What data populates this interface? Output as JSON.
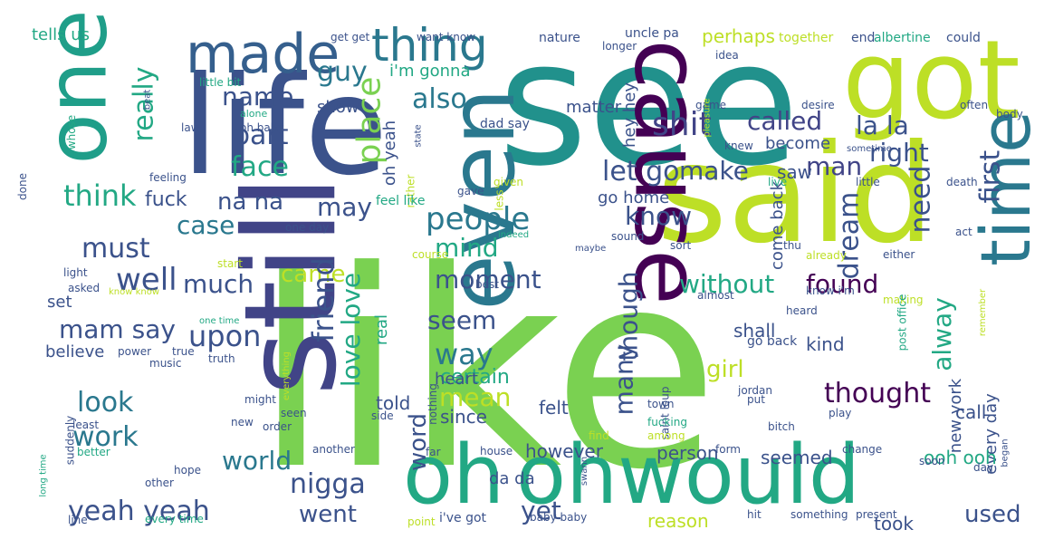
{
  "words": [
    {
      "id": "like",
      "text": "like",
      "color": "#7ad151"
    },
    {
      "id": "one",
      "text": "one",
      "color": "#1f9e89"
    },
    {
      "id": "see",
      "text": "see",
      "color": "#21918c"
    },
    {
      "id": "said",
      "text": "said",
      "color": "#bddf26"
    },
    {
      "id": "life",
      "text": "life",
      "color": "#3b528b"
    },
    {
      "id": "got",
      "text": "got",
      "color": "#bddf26"
    },
    {
      "id": "still",
      "text": "still",
      "color": "#414487"
    },
    {
      "id": "cause",
      "text": "cause",
      "color": "#440154"
    },
    {
      "id": "time",
      "text": "time",
      "color": "#2a788e"
    },
    {
      "id": "even",
      "text": "even",
      "color": "#2a788e"
    },
    {
      "id": "oh",
      "text": "oh",
      "color": "#22a884"
    },
    {
      "id": "ohwould",
      "text": "ohwould",
      "color": "#22a884"
    },
    {
      "id": "would",
      "text": "would",
      "color": "#2a788e"
    },
    {
      "id": "made",
      "text": "made",
      "color": "#355f8d"
    },
    {
      "id": "thing",
      "text": "thing",
      "color": "#2a788e"
    },
    {
      "id": "guy",
      "text": "guy",
      "color": "#2a788e"
    },
    {
      "id": "also",
      "text": "also",
      "color": "#2a788e"
    },
    {
      "id": "name",
      "text": "name",
      "color": "#3b528b"
    },
    {
      "id": "part",
      "text": "part",
      "color": "#3b528b"
    },
    {
      "id": "face",
      "text": "face",
      "color": "#22a884"
    },
    {
      "id": "place",
      "text": "place",
      "color": "#7ad151"
    },
    {
      "id": "shit",
      "text": "shit",
      "color": "#414487"
    },
    {
      "id": "called",
      "text": "called",
      "color": "#414487"
    },
    {
      "id": "la_la",
      "text": "la la",
      "color": "#3b528b"
    },
    {
      "id": "right",
      "text": "right",
      "color": "#3b528b"
    },
    {
      "id": "man",
      "text": "man",
      "color": "#414487"
    },
    {
      "id": "really",
      "text": "really",
      "color": "#22a884"
    },
    {
      "id": "think",
      "text": "think",
      "color": "#22a884"
    },
    {
      "id": "fuck",
      "text": "fuck",
      "color": "#3b528b"
    },
    {
      "id": "na_na",
      "text": "na na",
      "color": "#3b528b"
    },
    {
      "id": "may",
      "text": "may",
      "color": "#3b528b"
    },
    {
      "id": "people",
      "text": "people",
      "color": "#2a788e"
    },
    {
      "id": "let_go",
      "text": "let go",
      "color": "#3b528b"
    },
    {
      "id": "make",
      "text": "make",
      "color": "#3b528b"
    },
    {
      "id": "know",
      "text": "know",
      "color": "#3b528b"
    },
    {
      "id": "case",
      "text": "case",
      "color": "#2a788e"
    },
    {
      "id": "must",
      "text": "must",
      "color": "#3b528b"
    },
    {
      "id": "well",
      "text": "well",
      "color": "#3b528b"
    },
    {
      "id": "much",
      "text": "much",
      "color": "#3b528b"
    },
    {
      "id": "mind",
      "text": "mind",
      "color": "#22a884"
    },
    {
      "id": "moment",
      "text": "moment",
      "color": "#3b528b"
    },
    {
      "id": "came",
      "text": "came",
      "color": "#bddf26"
    },
    {
      "id": "without",
      "text": "without",
      "color": "#22a884"
    },
    {
      "id": "found",
      "text": "found",
      "color": "#440154"
    },
    {
      "id": "first",
      "text": "first",
      "color": "#3b528b"
    },
    {
      "id": "need",
      "text": "need",
      "color": "#3b528b"
    },
    {
      "id": "dream",
      "text": "dream",
      "color": "#3b528b"
    },
    {
      "id": "friend",
      "text": "friend",
      "color": "#3b528b"
    },
    {
      "id": "love_love",
      "text": "love love",
      "color": "#22a884"
    },
    {
      "id": "mam_say",
      "text": "mam say",
      "color": "#3b528b"
    },
    {
      "id": "upon",
      "text": "upon",
      "color": "#3b528b"
    },
    {
      "id": "seem",
      "text": "seem",
      "color": "#3b528b"
    },
    {
      "id": "way",
      "text": "way",
      "color": "#2a788e"
    },
    {
      "id": "though",
      "text": "though",
      "color": "#3b528b"
    },
    {
      "id": "many",
      "text": "many",
      "color": "#3b528b"
    },
    {
      "id": "girl",
      "text": "girl",
      "color": "#bddf26"
    },
    {
      "id": "thought",
      "text": "thought",
      "color": "#440154"
    },
    {
      "id": "alway",
      "text": "alway",
      "color": "#22a884"
    },
    {
      "id": "look",
      "text": "look",
      "color": "#2a788e"
    },
    {
      "id": "work",
      "text": "work",
      "color": "#2a788e"
    },
    {
      "id": "mean",
      "text": "mean",
      "color": "#bddf26"
    },
    {
      "id": "certain",
      "text": "certain",
      "color": "#22a884"
    },
    {
      "id": "world",
      "text": "world",
      "color": "#2a788e"
    },
    {
      "id": "nigga",
      "text": "nigga",
      "color": "#3b528b"
    },
    {
      "id": "yeah_yeah",
      "text": "yeah yeah",
      "color": "#3b528b"
    },
    {
      "id": "went",
      "text": "went",
      "color": "#3b528b"
    },
    {
      "id": "word",
      "text": "word",
      "color": "#3b528b"
    },
    {
      "id": "yet",
      "text": "yet",
      "color": "#3b528b"
    },
    {
      "id": "used",
      "text": "used",
      "color": "#3b528b"
    },
    {
      "id": "tells_us",
      "text": "tells us",
      "color": "#22a884"
    },
    {
      "id": "perhaps",
      "text": "perhaps",
      "color": "#bddf26"
    },
    {
      "id": "im_gonna",
      "text": "i'm gonna",
      "color": "#22a884"
    },
    {
      "id": "show",
      "text": "show",
      "color": "#3b528b"
    },
    {
      "id": "matter",
      "text": "matter",
      "color": "#3b528b"
    },
    {
      "id": "hey_hey",
      "text": "hey hey",
      "color": "#3b528b"
    },
    {
      "id": "oh_yeah",
      "text": "oh yeah",
      "color": "#3b528b"
    },
    {
      "id": "go_home",
      "text": "go home",
      "color": "#3b528b"
    },
    {
      "id": "become",
      "text": "become",
      "color": "#3b528b"
    },
    {
      "id": "saw",
      "text": "saw",
      "color": "#3b528b"
    },
    {
      "id": "kind",
      "text": "kind",
      "color": "#3b528b"
    },
    {
      "id": "shall",
      "text": "shall",
      "color": "#3b528b"
    },
    {
      "id": "come_back",
      "text": "come back",
      "color": "#3b528b"
    },
    {
      "id": "heart",
      "text": "heart",
      "color": "#3b528b"
    },
    {
      "id": "since",
      "text": "since",
      "color": "#3b528b"
    },
    {
      "id": "felt",
      "text": "felt",
      "color": "#3b528b"
    },
    {
      "id": "told",
      "text": "told",
      "color": "#3b528b"
    },
    {
      "id": "however",
      "text": "however",
      "color": "#3b528b"
    },
    {
      "id": "person",
      "text": "person",
      "color": "#3b528b"
    },
    {
      "id": "seemed",
      "text": "seemed",
      "color": "#3b528b"
    },
    {
      "id": "call",
      "text": "call",
      "color": "#3b528b"
    },
    {
      "id": "every_day",
      "text": "every day",
      "color": "#3b528b"
    },
    {
      "id": "new_york",
      "text": "new york",
      "color": "#3b528b"
    },
    {
      "id": "ooh_ooh",
      "text": "ooh ooh",
      "color": "#22a884"
    },
    {
      "id": "believe",
      "text": "believe",
      "color": "#3b528b"
    },
    {
      "id": "set",
      "text": "set",
      "color": "#3b528b"
    },
    {
      "id": "real",
      "text": "real",
      "color": "#22a884"
    },
    {
      "id": "took",
      "text": "took",
      "color": "#3b528b"
    },
    {
      "id": "reason",
      "text": "reason",
      "color": "#bddf26"
    },
    {
      "id": "da_da",
      "text": "da da",
      "color": "#3b528b"
    },
    {
      "id": "go_back",
      "text": "go back",
      "color": "#3b528b"
    },
    {
      "id": "nature",
      "text": "nature",
      "color": "#3b528b"
    },
    {
      "id": "uncle_pa",
      "text": "uncle pa",
      "color": "#3b528b"
    },
    {
      "id": "longer",
      "text": "longer",
      "color": "#3b528b"
    },
    {
      "id": "together",
      "text": "together",
      "color": "#bddf26"
    },
    {
      "id": "end",
      "text": "end",
      "color": "#3b528b"
    },
    {
      "id": "albertine",
      "text": "albertine",
      "color": "#22a884"
    },
    {
      "id": "could",
      "text": "could",
      "color": "#3b528b"
    },
    {
      "id": "get_get",
      "text": "get get",
      "color": "#3b528b"
    },
    {
      "id": "want_know",
      "text": "want know",
      "color": "#3b528b"
    },
    {
      "id": "little_bit",
      "text": "little bit",
      "color": "#22a884"
    },
    {
      "id": "beat",
      "text": "beat",
      "color": "#3b528b"
    },
    {
      "id": "alone",
      "text": "alone",
      "color": "#22a884"
    },
    {
      "id": "oh_baby",
      "text": "oh baby",
      "color": "#3b528b"
    },
    {
      "id": "law",
      "text": "law",
      "color": "#3b528b"
    },
    {
      "id": "whose",
      "text": "whose",
      "color": "#22a884"
    },
    {
      "id": "idea",
      "text": "idea",
      "color": "#3b528b"
    },
    {
      "id": "game",
      "text": "game",
      "color": "#3b528b"
    },
    {
      "id": "desire",
      "text": "desire",
      "color": "#3b528b"
    },
    {
      "id": "pleasure",
      "text": "pleasure",
      "color": "#bddf26"
    },
    {
      "id": "often",
      "text": "often",
      "color": "#3b528b"
    },
    {
      "id": "body",
      "text": "body",
      "color": "#3b528b"
    },
    {
      "id": "dad_say",
      "text": "dad say",
      "color": "#3b528b"
    },
    {
      "id": "state",
      "text": "state",
      "color": "#3b528b"
    },
    {
      "id": "knew",
      "text": "knew",
      "color": "#3b528b"
    },
    {
      "id": "sometime",
      "text": "sometime",
      "color": "#3b528b"
    },
    {
      "id": "live",
      "text": "live",
      "color": "#22a884"
    },
    {
      "id": "little",
      "text": "little",
      "color": "#3b528b"
    },
    {
      "id": "death",
      "text": "death",
      "color": "#3b528b"
    },
    {
      "id": "feeling",
      "text": "feeling",
      "color": "#3b528b"
    },
    {
      "id": "done",
      "text": "done",
      "color": "#3b528b"
    },
    {
      "id": "rather",
      "text": "rather",
      "color": "#bddf26"
    },
    {
      "id": "given",
      "text": "given",
      "color": "#bddf26"
    },
    {
      "id": "less",
      "text": "less",
      "color": "#bddf26"
    },
    {
      "id": "gave",
      "text": "gave",
      "color": "#3b528b"
    },
    {
      "id": "feel_like",
      "text": "feel like",
      "color": "#22a884"
    },
    {
      "id": "one_day",
      "text": "one day",
      "color": "#3b528b"
    },
    {
      "id": "indeed",
      "text": "indeed",
      "color": "#22a884"
    },
    {
      "id": "sound",
      "text": "sound",
      "color": "#3b528b"
    },
    {
      "id": "maybe",
      "text": "maybe",
      "color": "#3b528b"
    },
    {
      "id": "sort",
      "text": "sort",
      "color": "#3b528b"
    },
    {
      "id": "thu",
      "text": "thu",
      "color": "#3b528b"
    },
    {
      "id": "either",
      "text": "either",
      "color": "#3b528b"
    },
    {
      "id": "act",
      "text": "act",
      "color": "#3b528b"
    },
    {
      "id": "start",
      "text": "start",
      "color": "#bddf26"
    },
    {
      "id": "light",
      "text": "light",
      "color": "#3b528b"
    },
    {
      "id": "asked",
      "text": "asked",
      "color": "#3b528b"
    },
    {
      "id": "know_know",
      "text": "know know",
      "color": "#bddf26"
    },
    {
      "id": "course",
      "text": "course",
      "color": "#bddf26"
    },
    {
      "id": "best",
      "text": "best",
      "color": "#3b528b"
    },
    {
      "id": "already",
      "text": "already",
      "color": "#bddf26"
    },
    {
      "id": "know_im",
      "text": "know i'm",
      "color": "#3b528b"
    },
    {
      "id": "almost",
      "text": "almost",
      "color": "#3b528b"
    },
    {
      "id": "making",
      "text": "making",
      "color": "#bddf26"
    },
    {
      "id": "heard",
      "text": "heard",
      "color": "#3b528b"
    },
    {
      "id": "post_office",
      "text": "post office",
      "color": "#22a884"
    },
    {
      "id": "remember",
      "text": "remember",
      "color": "#bddf26"
    },
    {
      "id": "one_time",
      "text": "one time",
      "color": "#22a884"
    },
    {
      "id": "power",
      "text": "power",
      "color": "#3b528b"
    },
    {
      "id": "true",
      "text": "true",
      "color": "#3b528b"
    },
    {
      "id": "truth",
      "text": "truth",
      "color": "#3b528b"
    },
    {
      "id": "music",
      "text": "music",
      "color": "#3b528b"
    },
    {
      "id": "everything",
      "text": "everything",
      "color": "#bddf26"
    },
    {
      "id": "might",
      "text": "might",
      "color": "#3b528b"
    },
    {
      "id": "seen",
      "text": "seen",
      "color": "#3b528b"
    },
    {
      "id": "order",
      "text": "order",
      "color": "#3b528b"
    },
    {
      "id": "new",
      "text": "new",
      "color": "#3b528b"
    },
    {
      "id": "least",
      "text": "least",
      "color": "#3b528b"
    },
    {
      "id": "suddenly",
      "text": "suddenly",
      "color": "#3b528b"
    },
    {
      "id": "better",
      "text": "better",
      "color": "#22a884"
    },
    {
      "id": "side",
      "text": "side",
      "color": "#3b528b"
    },
    {
      "id": "nothing",
      "text": "nothing",
      "color": "#3b528b"
    },
    {
      "id": "saint_loup",
      "text": "saint loup",
      "color": "#3b528b"
    },
    {
      "id": "town",
      "text": "town",
      "color": "#3b528b"
    },
    {
      "id": "fucking",
      "text": "fucking",
      "color": "#22a884"
    },
    {
      "id": "among",
      "text": "among",
      "color": "#bddf26"
    },
    {
      "id": "find",
      "text": "find",
      "color": "#bddf26"
    },
    {
      "id": "jordan",
      "text": "jordan",
      "color": "#3b528b"
    },
    {
      "id": "put",
      "text": "put",
      "color": "#3b528b"
    },
    {
      "id": "play",
      "text": "play",
      "color": "#3b528b"
    },
    {
      "id": "bitch",
      "text": "bitch",
      "color": "#3b528b"
    },
    {
      "id": "another",
      "text": "another",
      "color": "#3b528b"
    },
    {
      "id": "far",
      "text": "far",
      "color": "#3b528b"
    },
    {
      "id": "house",
      "text": "house",
      "color": "#3b528b"
    },
    {
      "id": "form",
      "text": "form",
      "color": "#3b528b"
    },
    {
      "id": "change",
      "text": "change",
      "color": "#3b528b"
    },
    {
      "id": "soon",
      "text": "soon",
      "color": "#3b528b"
    },
    {
      "id": "day",
      "text": "day",
      "color": "#3b528b"
    },
    {
      "id": "began",
      "text": "began",
      "color": "#3b528b"
    },
    {
      "id": "hope",
      "text": "hope",
      "color": "#3b528b"
    },
    {
      "id": "other",
      "text": "other",
      "color": "#3b528b"
    },
    {
      "id": "long_time",
      "text": "long time",
      "color": "#22a884"
    },
    {
      "id": "line",
      "text": "line",
      "color": "#3b528b"
    },
    {
      "id": "every_time",
      "text": "every time",
      "color": "#22a884"
    },
    {
      "id": "point",
      "text": "point",
      "color": "#bddf26"
    },
    {
      "id": "ive_got",
      "text": "i've got",
      "color": "#3b528b"
    },
    {
      "id": "baby_baby",
      "text": "baby baby",
      "color": "#3b528b"
    },
    {
      "id": "hit",
      "text": "hit",
      "color": "#3b528b"
    },
    {
      "id": "something",
      "text": "something",
      "color": "#3b528b"
    },
    {
      "id": "present",
      "text": "present",
      "color": "#3b528b"
    },
    {
      "id": "swann",
      "text": "swann",
      "color": "#3b528b"
    }
  ]
}
